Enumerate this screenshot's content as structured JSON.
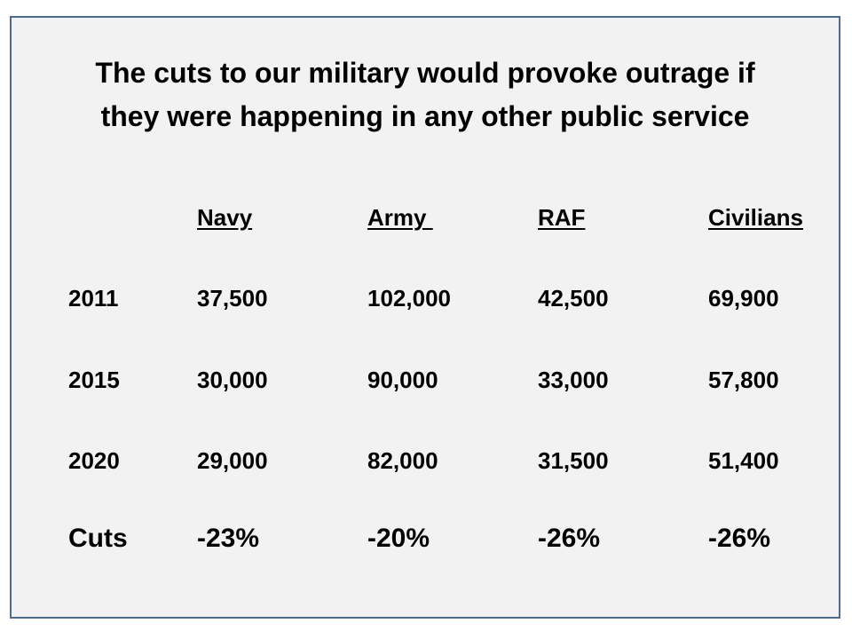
{
  "title": {
    "line1": "The cuts to our military would provoke outrage if",
    "line2": "they were happening in any other public service"
  },
  "table": {
    "columns": [
      "Navy",
      "Army ",
      "RAF",
      "Civilians"
    ],
    "rows": [
      {
        "label": "2011",
        "values": [
          "37,500",
          "102,000",
          "42,500",
          "69,900"
        ]
      },
      {
        "label": "2015",
        "values": [
          "30,000",
          "90,000",
          "33,000",
          "57,800"
        ]
      },
      {
        "label": "2020",
        "values": [
          "29,000",
          "82,000",
          "31,500",
          "51,400"
        ]
      },
      {
        "label": "Cuts",
        "values": [
          "-23%",
          "-20%",
          "-26%",
          "-26%"
        ]
      }
    ]
  },
  "colors": {
    "border": "#4f6a8f",
    "background": "#f2f2f2",
    "text": "#000000"
  }
}
